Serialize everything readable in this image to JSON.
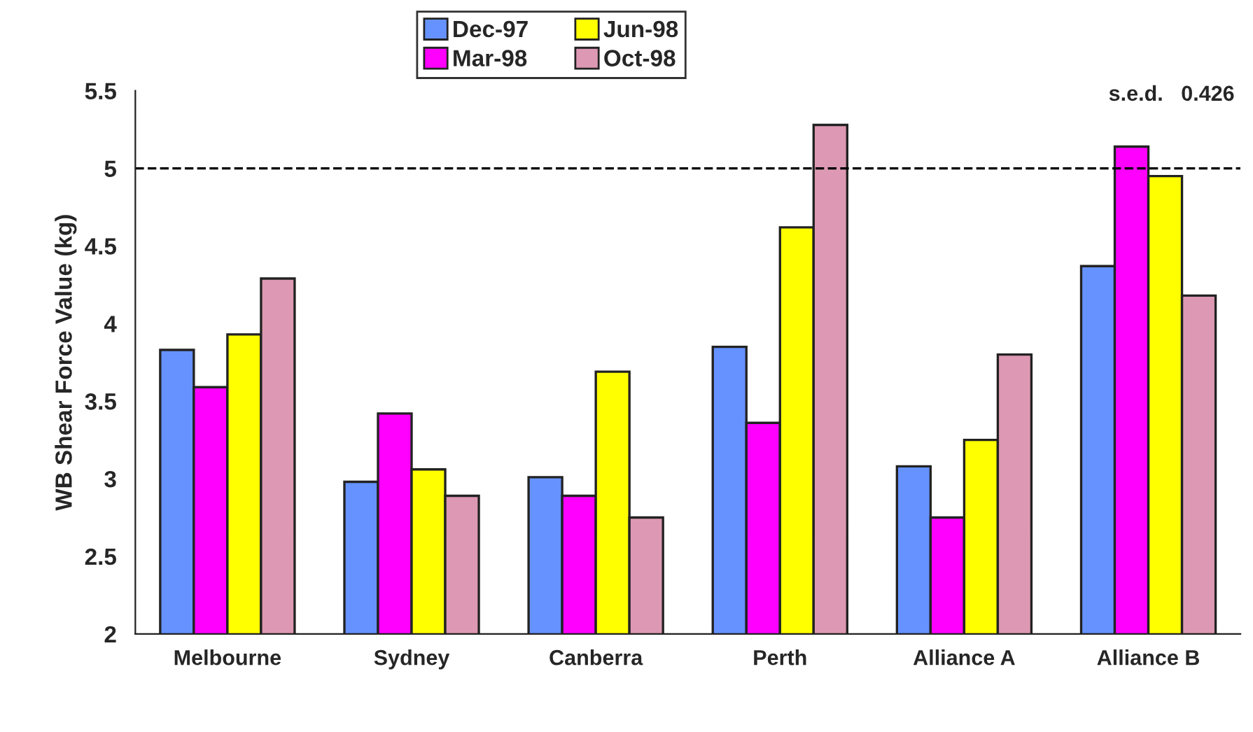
{
  "chart_data": {
    "type": "bar",
    "ylabel": "WB Shear Force Value (kg)",
    "categories": [
      "Melbourne",
      "Sydney",
      "Canberra",
      "Perth",
      "Alliance A",
      "Alliance B"
    ],
    "series": [
      {
        "name": "Dec-97",
        "color": "#6692ff",
        "values": [
          3.83,
          2.98,
          3.01,
          3.85,
          3.08,
          4.37
        ]
      },
      {
        "name": "Mar-98",
        "color": "#ff00ff",
        "values": [
          3.59,
          3.42,
          2.89,
          3.36,
          2.75,
          5.14
        ]
      },
      {
        "name": "Jun-98",
        "color": "#ffff00",
        "values": [
          3.93,
          3.06,
          3.69,
          4.62,
          3.25,
          4.95
        ]
      },
      {
        "name": "Oct-98",
        "color": "#dd99b3",
        "values": [
          4.29,
          2.89,
          2.75,
          5.28,
          3.8,
          4.18
        ]
      }
    ],
    "ylim": [
      2,
      5.5
    ],
    "yticks": [
      2,
      2.5,
      3,
      3.5,
      4,
      4.5,
      5,
      5.5
    ],
    "ref_lines": [
      {
        "axis": "y",
        "value": 5,
        "line_style": "dashed",
        "color": "#000000"
      }
    ],
    "annotations": [
      "s.e.d.   0.426"
    ],
    "legend": "top",
    "grid": false
  }
}
